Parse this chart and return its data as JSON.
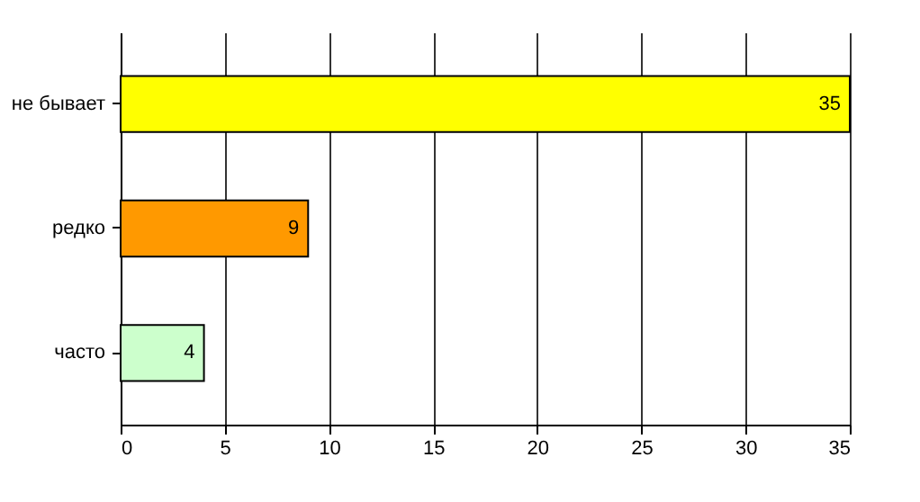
{
  "chart_data": {
    "type": "bar",
    "orientation": "horizontal",
    "categories": [
      "не бывает",
      "редко",
      "часто"
    ],
    "values": [
      35,
      9,
      4
    ],
    "colors": [
      "#ffff00",
      "#ff9900",
      "#ccffcc"
    ],
    "xlim": [
      0,
      35
    ],
    "xticks": [
      0,
      5,
      10,
      15,
      20,
      25,
      30,
      35
    ],
    "grid": "x",
    "data_labels": true,
    "legend": false
  }
}
